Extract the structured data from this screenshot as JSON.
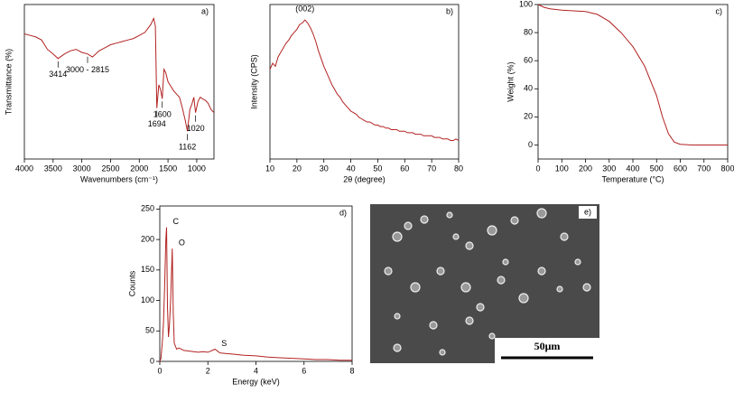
{
  "chart_data": [
    {
      "type": "line",
      "label": "a)",
      "xlabel": "Wavenumbers (cm⁻¹)",
      "ylabel": "Transmittance (%)",
      "color": "#b22222",
      "xlim": [
        4000,
        700
      ],
      "ylim": [
        0,
        100
      ],
      "xticks": [
        4000,
        3500,
        3000,
        2500,
        2000,
        1500,
        1000
      ],
      "x": [
        4000,
        3900,
        3800,
        3700,
        3600,
        3500,
        3414,
        3300,
        3200,
        3100,
        3000,
        2900,
        2815,
        2700,
        2600,
        2500,
        2400,
        2300,
        2200,
        2100,
        2000,
        1900,
        1800,
        1750,
        1720,
        1694,
        1660,
        1630,
        1600,
        1570,
        1540,
        1500,
        1450,
        1400,
        1350,
        1300,
        1250,
        1200,
        1162,
        1120,
        1080,
        1050,
        1020,
        980,
        940,
        900,
        850,
        800,
        750,
        700
      ],
      "values": [
        81,
        80,
        79,
        77,
        71,
        68,
        65,
        68,
        70,
        71,
        69,
        68,
        66,
        70,
        72,
        74,
        75,
        76,
        77,
        78,
        80,
        82,
        87,
        91,
        86,
        33,
        48,
        45,
        39,
        58,
        56,
        50,
        47,
        44,
        42,
        40,
        33,
        25,
        18,
        32,
        36,
        40,
        30,
        37,
        40,
        39,
        38,
        36,
        32,
        30
      ],
      "annotations": [
        {
          "text": "3414",
          "x": 3414,
          "y": 65
        },
        {
          "text": "3000 - 2815",
          "x": 2900,
          "y": 68
        },
        {
          "text": "1694",
          "x": 1694,
          "y": 33
        },
        {
          "text": "1600",
          "x": 1600,
          "y": 39
        },
        {
          "text": "1162",
          "x": 1162,
          "y": 18
        },
        {
          "text": "1020",
          "x": 1020,
          "y": 30
        }
      ]
    },
    {
      "type": "line",
      "label": "b)",
      "xlabel": "2θ (degree)",
      "ylabel": "Intensity (CPS)",
      "color": "#b22222",
      "xlim": [
        10,
        80
      ],
      "ylim": [
        0,
        100
      ],
      "xticks": [
        10,
        20,
        30,
        40,
        50,
        60,
        70,
        80
      ],
      "x": [
        10,
        11,
        12,
        13,
        14,
        15,
        16,
        17,
        18,
        19,
        20,
        21,
        22,
        23,
        24,
        25,
        26,
        27,
        28,
        29,
        30,
        31,
        32,
        33,
        34,
        35,
        36,
        37,
        38,
        39,
        40,
        41,
        42,
        43,
        44,
        45,
        46,
        47,
        48,
        49,
        50,
        51,
        52,
        53,
        54,
        55,
        56,
        57,
        58,
        59,
        60,
        61,
        62,
        63,
        64,
        65,
        66,
        67,
        68,
        69,
        70,
        71,
        72,
        73,
        74,
        75,
        76,
        77,
        78,
        79,
        80
      ],
      "values": [
        58,
        62,
        60,
        66,
        69,
        72,
        75,
        77,
        80,
        82,
        84,
        87,
        88,
        90,
        88,
        85,
        81,
        76,
        70,
        65,
        60,
        56,
        52,
        48,
        45,
        42,
        40,
        37,
        35,
        33,
        31,
        30,
        29,
        27,
        26,
        25,
        24,
        24,
        23,
        22,
        22,
        21,
        21,
        20,
        20,
        19,
        19,
        19,
        18,
        18,
        18,
        17,
        17,
        17,
        16,
        16,
        16,
        15,
        15,
        15,
        15,
        14,
        14,
        14,
        13,
        13,
        13,
        12,
        12,
        13,
        12
      ],
      "annotations": [
        {
          "text": "(002)",
          "x": 23,
          "y": 90
        }
      ]
    },
    {
      "type": "line",
      "label": "c)",
      "xlabel": "Temperature (°C)",
      "ylabel": "Weight (%)",
      "color": "#b22222",
      "xlim": [
        0,
        800
      ],
      "ylim": [
        -10,
        100
      ],
      "xticks": [
        0,
        100,
        200,
        300,
        400,
        500,
        600,
        700,
        800
      ],
      "yticks": [
        0,
        20,
        40,
        60,
        80,
        100
      ],
      "x": [
        0,
        25,
        50,
        100,
        150,
        200,
        250,
        300,
        350,
        400,
        450,
        500,
        525,
        550,
        575,
        600,
        650,
        700,
        800
      ],
      "values": [
        100,
        98,
        97,
        96,
        95.5,
        95,
        93,
        88,
        80,
        70,
        56,
        35,
        20,
        8,
        2,
        0.5,
        0,
        0,
        0
      ]
    },
    {
      "type": "line",
      "label": "d)",
      "xlabel": "Energy (keV)",
      "ylabel": "Counts",
      "color": "#b22222",
      "xlim": [
        0,
        8
      ],
      "ylim": [
        0,
        255
      ],
      "xticks": [
        0,
        2,
        4,
        6,
        8
      ],
      "yticks": [
        0,
        50,
        100,
        150,
        200,
        250
      ],
      "x": [
        0,
        0.05,
        0.1,
        0.15,
        0.2,
        0.25,
        0.28,
        0.32,
        0.36,
        0.4,
        0.45,
        0.52,
        0.56,
        0.6,
        0.7,
        0.8,
        1.0,
        1.2,
        1.4,
        1.6,
        1.8,
        2.0,
        2.3,
        2.5,
        3,
        3.5,
        4,
        4.5,
        5,
        5.5,
        6,
        6.5,
        7,
        7.5,
        8
      ],
      "values": [
        0,
        5,
        30,
        60,
        120,
        200,
        220,
        90,
        40,
        60,
        100,
        185,
        80,
        30,
        20,
        22,
        18,
        17,
        16,
        15,
        16,
        15,
        20,
        14,
        12,
        10,
        9,
        7,
        6,
        5,
        4,
        3,
        3,
        2,
        2
      ],
      "annotations": [
        {
          "text": "C",
          "x": 0.28,
          "y": 220
        },
        {
          "text": "O",
          "x": 0.52,
          "y": 185
        },
        {
          "text": "S",
          "x": 2.3,
          "y": 20
        }
      ]
    }
  ],
  "image": {
    "label": "e)",
    "scale_bar": "50μm"
  }
}
